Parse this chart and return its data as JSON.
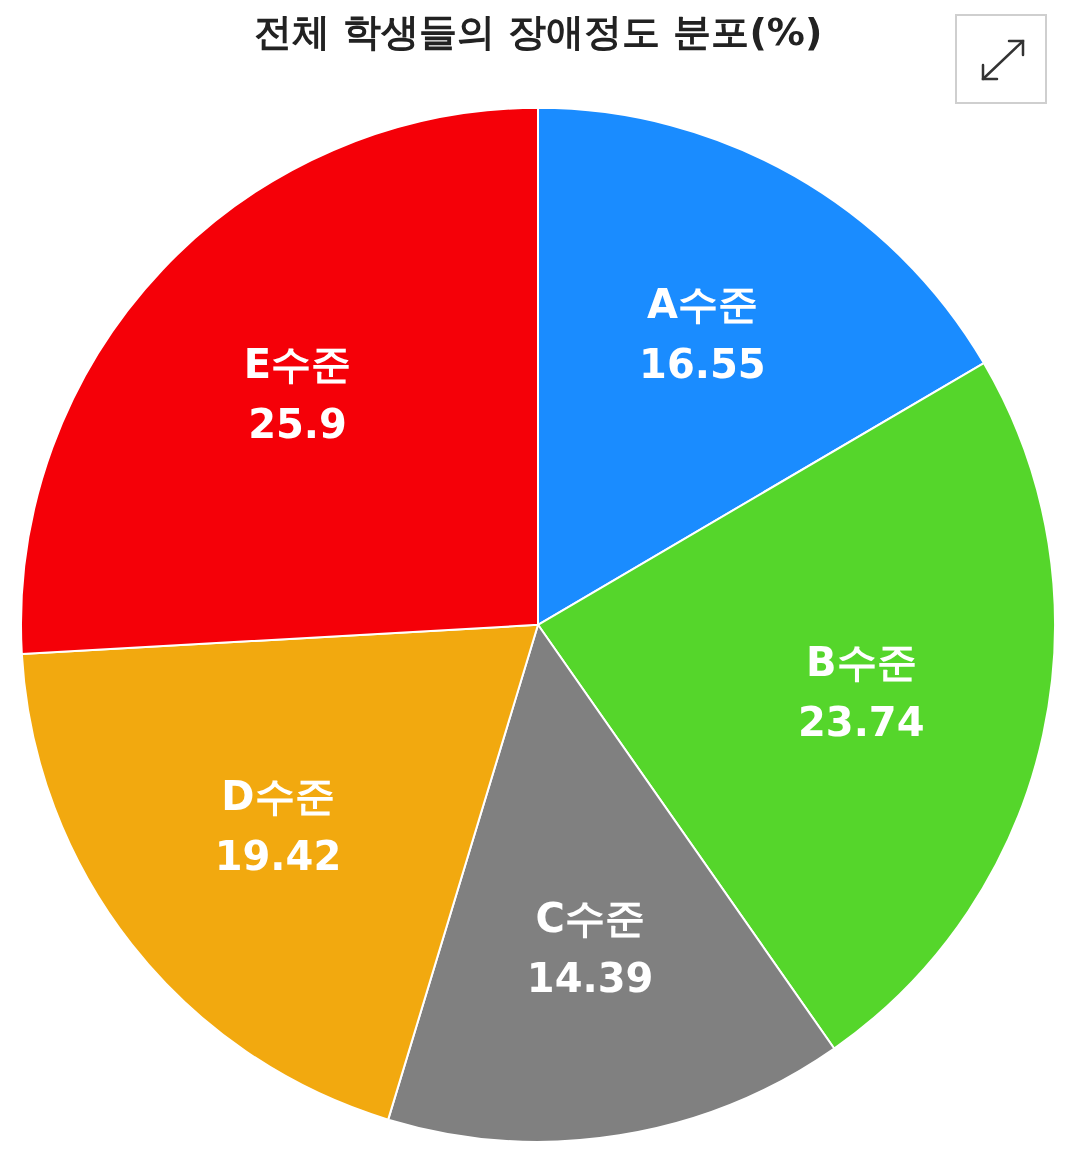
{
  "chart_data": {
    "type": "pie",
    "title": "전체 학생들의 장애정도 분포(%)",
    "categories": [
      "A수준",
      "B수준",
      "C수준",
      "D수준",
      "E수준"
    ],
    "values": [
      16.55,
      23.74,
      14.39,
      19.42,
      25.9
    ],
    "colors": [
      "#1a8cff",
      "#55d62b",
      "#808080",
      "#f2a90f",
      "#f50008"
    ],
    "data_labels": true,
    "legend": false
  }
}
